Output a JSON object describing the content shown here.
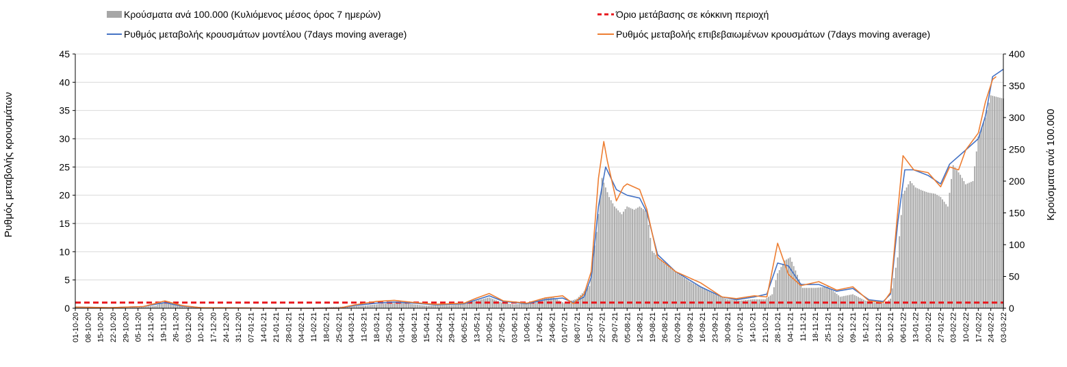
{
  "chart_data": {
    "type": "bar+line",
    "title": "",
    "ylabel_left": "Ρυθμός μεταβολής κρουσμάτων",
    "ylabel_right": "Κρούσματα ανά 100.000",
    "ylim_left": [
      0,
      45
    ],
    "ylim_right": [
      0,
      400
    ],
    "yticks_left": [
      0,
      5,
      10,
      15,
      20,
      25,
      30,
      35,
      40,
      45
    ],
    "yticks_right": [
      0,
      50,
      100,
      150,
      200,
      250,
      300,
      350,
      400
    ],
    "grid": true,
    "legend_position": "top",
    "x_start": "2020-10-01",
    "x_end": "2022-03-03",
    "xtick_labels": [
      "01-10-20",
      "08-10-20",
      "15-10-20",
      "22-10-20",
      "29-10-20",
      "05-11-20",
      "12-11-20",
      "19-11-20",
      "26-11-20",
      "03-12-20",
      "10-12-20",
      "17-12-20",
      "24-12-20",
      "31-12-20",
      "07-01-21",
      "14-01-21",
      "21-01-21",
      "28-01-21",
      "04-02-21",
      "11-02-21",
      "18-02-21",
      "25-02-21",
      "04-03-21",
      "11-03-21",
      "18-03-21",
      "25-03-21",
      "01-04-21",
      "08-04-21",
      "15-04-21",
      "22-04-21",
      "29-04-21",
      "06-05-21",
      "13-05-21",
      "20-05-21",
      "27-05-21",
      "03-06-21",
      "10-06-21",
      "17-06-21",
      "24-06-21",
      "01-07-21",
      "08-07-21",
      "15-07-21",
      "22-07-21",
      "29-07-21",
      "05-08-21",
      "12-08-21",
      "19-08-21",
      "26-08-21",
      "02-09-21",
      "09-09-21",
      "16-09-21",
      "23-09-21",
      "30-09-21",
      "07-10-21",
      "14-10-21",
      "21-10-21",
      "28-10-21",
      "04-11-21",
      "11-11-21",
      "18-11-21",
      "25-11-21",
      "02-12-21",
      "09-12-21",
      "16-12-21",
      "23-12-21",
      "30-12-21",
      "06-01-22",
      "13-01-22",
      "20-01-22",
      "27-01-22",
      "03-02-22",
      "10-02-22",
      "17-02-22",
      "24-02-22",
      "03-03-22"
    ],
    "threshold": {
      "name": "Όριο μετάβασης σε κόκκινη περιοχή",
      "value": 1,
      "color": "#e8161b"
    },
    "series": [
      {
        "name": "Κρούσματα ανά 100.000 (Κυλιόμενος μέσος όρος 7 ημερών)",
        "kind": "bar",
        "axis": "right",
        "color": "#a6a6a6",
        "x": [
          "2020-10-01",
          "2020-10-15",
          "2020-10-29",
          "2020-11-08",
          "2020-11-15",
          "2020-11-20",
          "2020-11-26",
          "2020-12-03",
          "2020-12-17",
          "2021-01-07",
          "2021-02-04",
          "2021-03-04",
          "2021-03-11",
          "2021-03-18",
          "2021-03-25",
          "2021-04-01",
          "2021-04-08",
          "2021-04-15",
          "2021-04-22",
          "2021-04-29",
          "2021-05-06",
          "2021-05-13",
          "2021-05-20",
          "2021-05-27",
          "2021-06-03",
          "2021-06-10",
          "2021-06-17",
          "2021-06-24",
          "2021-07-01",
          "2021-07-08",
          "2021-07-15",
          "2021-07-19",
          "2021-07-22",
          "2021-07-26",
          "2021-07-29",
          "2021-08-02",
          "2021-08-05",
          "2021-08-09",
          "2021-08-12",
          "2021-08-16",
          "2021-08-19",
          "2021-08-26",
          "2021-09-02",
          "2021-09-09",
          "2021-09-16",
          "2021-09-23",
          "2021-09-30",
          "2021-10-07",
          "2021-10-14",
          "2021-10-21",
          "2021-10-25",
          "2021-10-28",
          "2021-11-01",
          "2021-11-04",
          "2021-11-11",
          "2021-11-18",
          "2021-11-25",
          "2021-12-02",
          "2021-12-09",
          "2021-12-16",
          "2021-12-23",
          "2021-12-27",
          "2021-12-30",
          "2022-01-03",
          "2022-01-06",
          "2022-01-10",
          "2022-01-13",
          "2022-01-17",
          "2022-01-20",
          "2022-01-24",
          "2022-01-27",
          "2022-01-31",
          "2022-02-03",
          "2022-02-07",
          "2022-02-10",
          "2022-02-14",
          "2022-02-17",
          "2022-02-21",
          "2022-02-24",
          "2022-02-28",
          "2022-03-03"
        ],
        "values": [
          2,
          1,
          0.5,
          2,
          4,
          10,
          8,
          3,
          1,
          0.5,
          0.5,
          3,
          4,
          6,
          8,
          9,
          6,
          4,
          5,
          5,
          7,
          12,
          17,
          9,
          6,
          8,
          14,
          18,
          8,
          15,
          35,
          120,
          205,
          175,
          160,
          148,
          160,
          155,
          160,
          152,
          90,
          70,
          55,
          42,
          32,
          22,
          14,
          12,
          14,
          14,
          22,
          55,
          75,
          80,
          32,
          32,
          34,
          18,
          22,
          12,
          8,
          8,
          15,
          80,
          180,
          200,
          190,
          185,
          182,
          180,
          175,
          160,
          225,
          210,
          195,
          200,
          270,
          300,
          335,
          332,
          330
        ]
      },
      {
        "name": "Ρυθμός μεταβολής κρουσμάτων μοντέλου (7days moving average)",
        "kind": "line",
        "axis": "left",
        "color": "#4472c4",
        "x": [
          "2020-10-01",
          "2020-10-20",
          "2020-11-08",
          "2020-11-20",
          "2020-11-29",
          "2020-12-10",
          "2021-01-20",
          "2021-02-25",
          "2021-03-06",
          "2021-03-18",
          "2021-03-28",
          "2021-04-08",
          "2021-04-20",
          "2021-05-06",
          "2021-05-13",
          "2021-05-20",
          "2021-05-28",
          "2021-06-10",
          "2021-06-20",
          "2021-06-30",
          "2021-07-06",
          "2021-07-12",
          "2021-07-16",
          "2021-07-20",
          "2021-07-24",
          "2021-07-30",
          "2021-08-05",
          "2021-08-12",
          "2021-08-16",
          "2021-08-22",
          "2021-09-01",
          "2021-09-15",
          "2021-09-27",
          "2021-10-05",
          "2021-10-15",
          "2021-10-22",
          "2021-10-28",
          "2021-11-03",
          "2021-11-10",
          "2021-11-20",
          "2021-11-30",
          "2021-12-09",
          "2021-12-18",
          "2021-12-26",
          "2021-12-30",
          "2022-01-03",
          "2022-01-07",
          "2022-01-12",
          "2022-01-20",
          "2022-01-27",
          "2022-02-01",
          "2022-02-10",
          "2022-02-17",
          "2022-02-21",
          "2022-02-25",
          "2022-03-03"
        ],
        "values": [
          0.2,
          0.1,
          0.3,
          1.0,
          0.4,
          0.1,
          0,
          0,
          0.5,
          0.9,
          1.1,
          0.9,
          0.6,
          0.8,
          1.5,
          2.2,
          1.2,
          0.8,
          1.5,
          1.8,
          1.0,
          2.0,
          5.5,
          18.0,
          25.0,
          21.0,
          20.0,
          19.5,
          17.0,
          9.5,
          6.5,
          3.8,
          2.0,
          1.5,
          2.0,
          2.5,
          8.0,
          7.5,
          4.2,
          4.2,
          3.0,
          3.5,
          1.5,
          1.2,
          2.5,
          15.0,
          24.5,
          24.5,
          23.5,
          22.0,
          25.5,
          28.0,
          30.0,
          34.0,
          41.0,
          42.3
        ]
      },
      {
        "name": "Ρυθμός μεταβολής επιβεβαιωμένων κρουσμάτων (7days moving average)",
        "kind": "line",
        "axis": "left",
        "color": "#ed7d31",
        "x": [
          "2020-10-01",
          "2020-10-20",
          "2020-11-08",
          "2020-11-20",
          "2020-11-29",
          "2020-12-10",
          "2021-01-20",
          "2021-02-25",
          "2021-03-06",
          "2021-03-18",
          "2021-03-28",
          "2021-04-08",
          "2021-04-20",
          "2021-05-06",
          "2021-05-13",
          "2021-05-20",
          "2021-05-28",
          "2021-06-10",
          "2021-06-20",
          "2021-06-30",
          "2021-07-06",
          "2021-07-12",
          "2021-07-16",
          "2021-07-20",
          "2021-07-23",
          "2021-07-25",
          "2021-07-30",
          "2021-08-03",
          "2021-08-05",
          "2021-08-12",
          "2021-08-16",
          "2021-08-22",
          "2021-09-01",
          "2021-09-15",
          "2021-09-27",
          "2021-10-05",
          "2021-10-15",
          "2021-10-22",
          "2021-10-28",
          "2021-11-03",
          "2021-11-10",
          "2021-11-20",
          "2021-11-30",
          "2021-12-09",
          "2021-12-18",
          "2021-12-26",
          "2021-12-30",
          "2022-01-03",
          "2022-01-06",
          "2022-01-12",
          "2022-01-20",
          "2022-01-27",
          "2022-02-01",
          "2022-02-06",
          "2022-02-10",
          "2022-02-17",
          "2022-02-21",
          "2022-02-25",
          "2022-02-27"
        ],
        "values": [
          0.2,
          0.1,
          0.3,
          1.3,
          0.5,
          0.1,
          0,
          0,
          0.6,
          1.2,
          1.4,
          1.0,
          0.7,
          0.9,
          1.8,
          2.6,
          1.3,
          0.9,
          1.8,
          2.2,
          0.8,
          2.5,
          6.5,
          23.0,
          29.5,
          26.0,
          19.0,
          21.5,
          22.0,
          21.0,
          17.5,
          9.0,
          6.5,
          4.5,
          2.0,
          1.7,
          2.2,
          2.0,
          11.5,
          6.0,
          4.0,
          4.7,
          3.2,
          3.8,
          1.3,
          1.0,
          2.8,
          17.0,
          27.0,
          24.5,
          24.0,
          21.5,
          25.0,
          24.5,
          28.0,
          31.0,
          36.5,
          40.5,
          41.0
        ]
      }
    ]
  }
}
